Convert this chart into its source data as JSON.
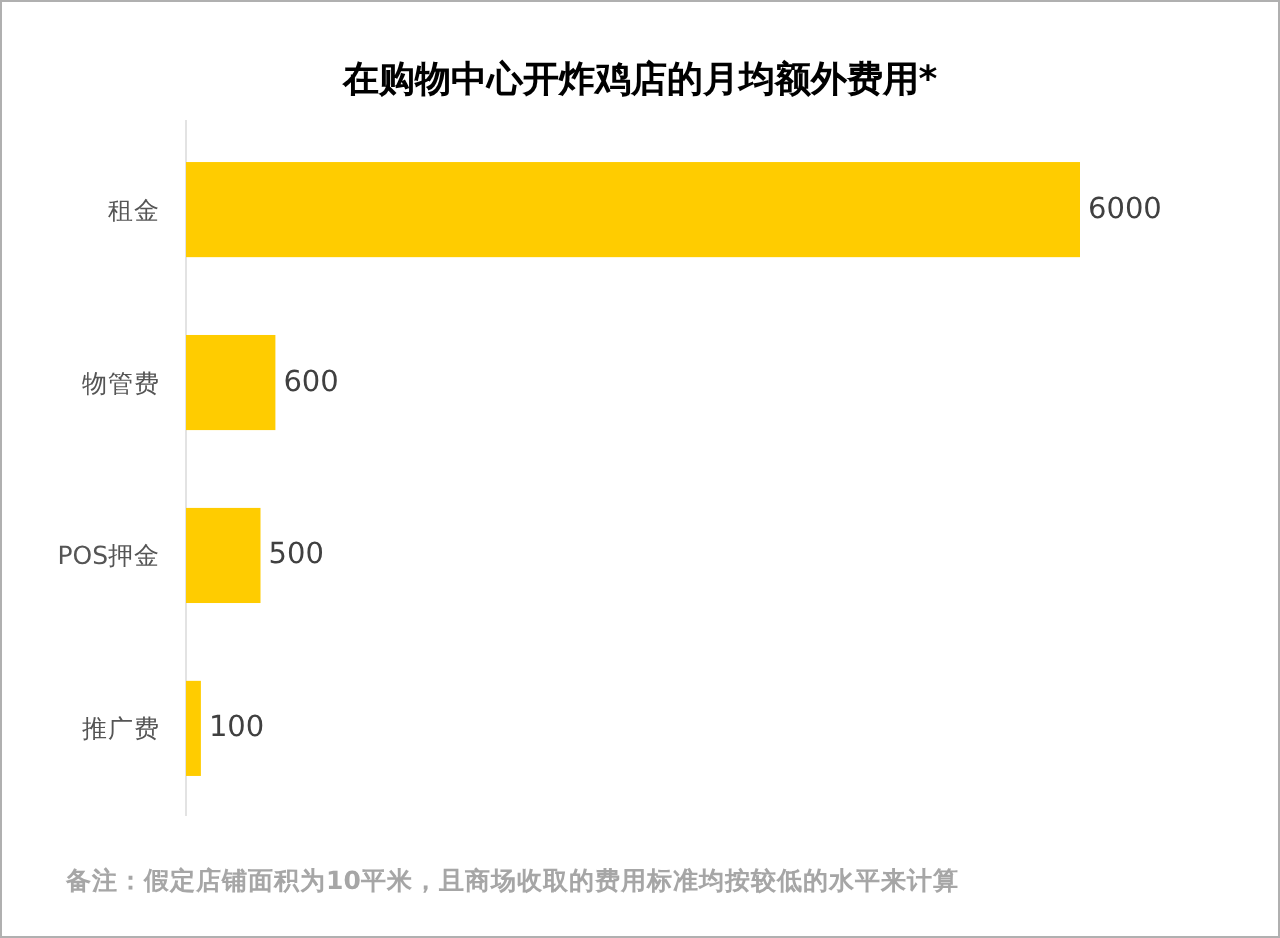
{
  "chart_data": {
    "type": "bar",
    "orientation": "horizontal",
    "title": "在购物中心开炸鸡店的月均额外费用*",
    "categories": [
      "租金",
      "物管费",
      "POS押金",
      "推广费"
    ],
    "values": [
      6000,
      600,
      500,
      100
    ],
    "color": "#ffcc00",
    "data_labels": true,
    "annotations": [
      "备注：假定店铺面积为10平米，且商场收取的费用标准均按较低的水平来计算"
    ]
  }
}
